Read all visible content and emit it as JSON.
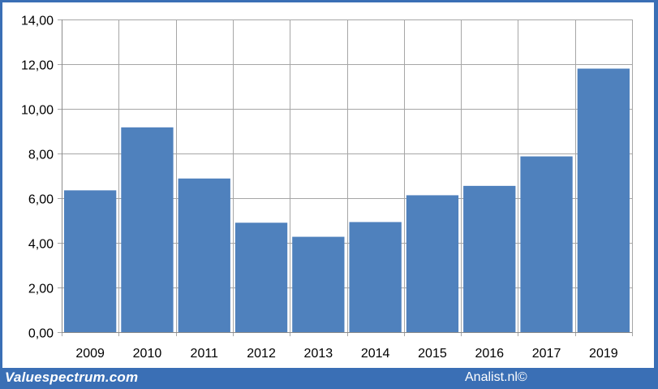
{
  "chart_data": {
    "type": "bar",
    "categories": [
      "2009",
      "2010",
      "2011",
      "2012",
      "2013",
      "2014",
      "2015",
      "2016",
      "2017",
      "2019"
    ],
    "values": [
      6.35,
      9.17,
      6.88,
      4.9,
      4.27,
      4.93,
      6.13,
      6.55,
      7.87,
      11.8
    ],
    "ylim": [
      0,
      14
    ],
    "yticks": [
      "0,00",
      "2,00",
      "4,00",
      "6,00",
      "8,00",
      "10,00",
      "12,00",
      "14,00"
    ],
    "title": "",
    "xlabel": "",
    "ylabel": "",
    "grid": true,
    "bar_color": "#4f81bd"
  },
  "footer": {
    "left_label": "Valuespectrum.com",
    "right_label": "Analist.nl©"
  },
  "colors": {
    "background": "#3a6fb5",
    "plot_background": "#ffffff",
    "grid": "#a6a6a6"
  }
}
